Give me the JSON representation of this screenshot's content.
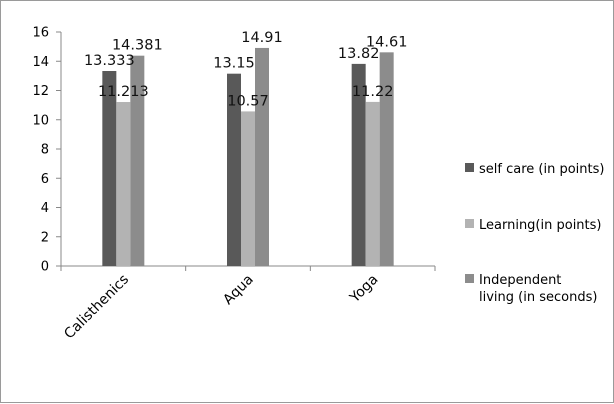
{
  "chart_data": {
    "type": "bar",
    "categories": [
      "Calisthenics",
      "Aqua",
      "Yoga"
    ],
    "series": [
      {
        "name": "self care (in points)",
        "color": "#595959",
        "values": [
          13.333,
          13.15,
          13.82
        ],
        "labels": [
          "13.333",
          "13.15",
          "13.82"
        ]
      },
      {
        "name": "Learning(in points)",
        "color": "#b3b3b3",
        "values": [
          11.213,
          10.57,
          11.22
        ],
        "labels": [
          "11.213",
          "10.57",
          "11.22"
        ]
      },
      {
        "name": "Independent living  (in seconds)",
        "legend_lines": [
          "Independent",
          "living  (in seconds)"
        ],
        "color": "#8c8c8c",
        "values": [
          14.381,
          14.91,
          14.61
        ],
        "labels": [
          "14.381",
          "14.91",
          "14.61"
        ]
      }
    ],
    "ylim": [
      0,
      16
    ],
    "yticks": [
      0,
      2,
      4,
      6,
      8,
      10,
      12,
      14,
      16
    ],
    "grid": false,
    "legend_position": "right"
  }
}
